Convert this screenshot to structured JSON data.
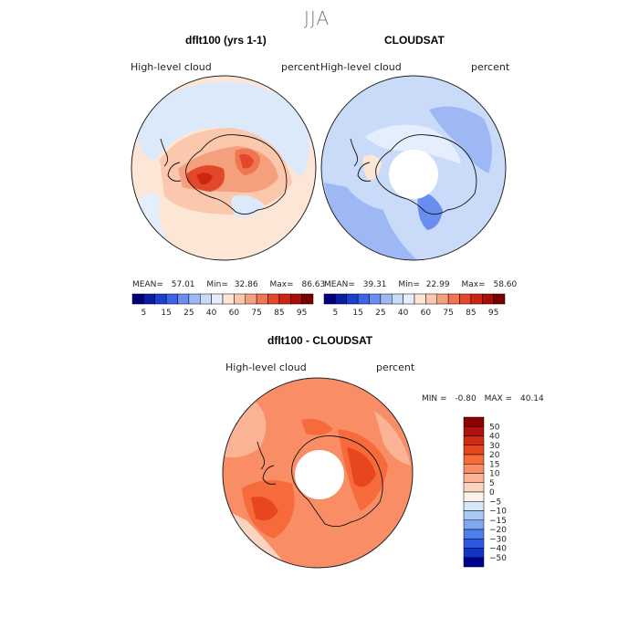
{
  "page": {
    "season": "JJA"
  },
  "panels": {
    "model": {
      "title": "dflt100 (yrs 1-1)",
      "left_label": "High-level cloud",
      "right_label": "percent",
      "stats": {
        "mean_label": "MEAN=",
        "mean": "57.01",
        "min_label": "Min=",
        "min": "32.86",
        "max_label": "Max=",
        "max": "86.63"
      }
    },
    "obs": {
      "title": "CLOUDSAT",
      "left_label": "High-level cloud",
      "right_label": "percent",
      "stats": {
        "mean_label": "MEAN=",
        "mean": "39.31",
        "min_label": "Min=",
        "min": "22.99",
        "max_label": "Max=",
        "max": "58.60"
      }
    },
    "diff": {
      "title": "dflt100 - CLOUDSAT",
      "left_label": "High-level cloud",
      "right_label": "percent",
      "stats": {
        "min_label": "MIN =",
        "min": "-0.80",
        "max_label": "MAX =",
        "max": "40.14"
      }
    }
  },
  "chart_data": [
    {
      "type": "heatmap",
      "projection": "south-polar-stereographic",
      "title": "dflt100 (yrs 1-1)",
      "variable": "High-level cloud",
      "units": "percent",
      "stats": {
        "mean": 57.01,
        "min": 32.86,
        "max": 86.63
      },
      "colorbar": {
        "levels": [
          5,
          10,
          15,
          20,
          25,
          30,
          40,
          50,
          60,
          70,
          75,
          80,
          85,
          90,
          95
        ],
        "tick_labels": [
          "5",
          "15",
          "25",
          "40",
          "60",
          "75",
          "85",
          "95"
        ],
        "colors": [
          "#00007f",
          "#0a1fa0",
          "#1c3fcf",
          "#3e63e6",
          "#6a8ef0",
          "#9db8f5",
          "#c9dbf8",
          "#e4eefc",
          "#fde6d6",
          "#fbc8ad",
          "#f5a07c",
          "#ef7650",
          "#e5472a",
          "#cc2512",
          "#a80d08",
          "#7a0000"
        ]
      }
    },
    {
      "type": "heatmap",
      "projection": "south-polar-stereographic",
      "title": "CLOUDSAT",
      "variable": "High-level cloud",
      "units": "percent",
      "stats": {
        "mean": 39.31,
        "min": 22.99,
        "max": 58.6
      },
      "colorbar": {
        "levels": [
          5,
          10,
          15,
          20,
          25,
          30,
          40,
          50,
          60,
          70,
          75,
          80,
          85,
          90,
          95
        ],
        "tick_labels": [
          "5",
          "15",
          "25",
          "40",
          "60",
          "75",
          "85",
          "95"
        ],
        "colors": [
          "#00007f",
          "#0a1fa0",
          "#1c3fcf",
          "#3e63e6",
          "#6a8ef0",
          "#9db8f5",
          "#c9dbf8",
          "#e4eefc",
          "#fde6d6",
          "#fbc8ad",
          "#f5a07c",
          "#ef7650",
          "#e5472a",
          "#cc2512",
          "#a80d08",
          "#7a0000"
        ]
      }
    },
    {
      "type": "heatmap",
      "projection": "south-polar-stereographic",
      "title": "dflt100 - CLOUDSAT",
      "variable": "High-level cloud",
      "units": "percent",
      "stats": {
        "min": -0.8,
        "max": 40.14
      },
      "colorbar": {
        "orientation": "vertical",
        "levels": [
          -50,
          -40,
          -30,
          -20,
          -15,
          -10,
          -5,
          0,
          5,
          10,
          15,
          20,
          30,
          40,
          50
        ],
        "tick_labels": [
          "50",
          "40",
          "30",
          "20",
          "15",
          "10",
          "5",
          "0",
          "−5",
          "−10",
          "−15",
          "−20",
          "−30",
          "−40",
          "−50"
        ],
        "colors": [
          "#8b0000",
          "#b01010",
          "#cf2a12",
          "#e8461f",
          "#f76a3c",
          "#f98d66",
          "#fab394",
          "#fbd4bf",
          "#fdf2ea",
          "#d6e6fb",
          "#a9c8f5",
          "#7da7ef",
          "#4f7eea",
          "#2d58e0",
          "#1235c8",
          "#000090"
        ]
      }
    }
  ]
}
